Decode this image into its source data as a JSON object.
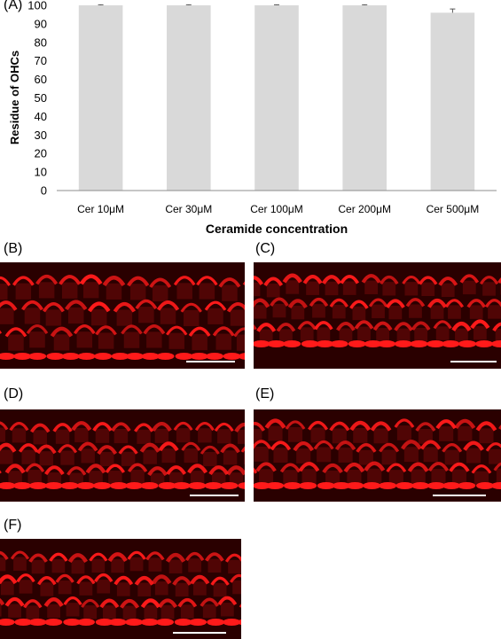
{
  "chart_data": {
    "type": "bar",
    "panel_label": "(A)",
    "categories": [
      "Cer 10μM",
      "Cer 30μM",
      "Cer 100μM",
      "Cer 200μM",
      "Cer 500μM"
    ],
    "values": [
      100,
      100,
      100,
      100,
      96
    ],
    "errors": [
      0.3,
      0.3,
      0.3,
      0.3,
      2
    ],
    "xlabel": "Ceramide concentration",
    "ylabel": "Residue of OHCs",
    "ylim": [
      0,
      100
    ],
    "yticks": [
      0,
      10,
      20,
      30,
      40,
      50,
      60,
      70,
      80,
      90,
      100
    ],
    "bar_color": "#d9d9d9",
    "grid": false
  },
  "micrographs": {
    "labels": [
      "(B)",
      "(C)",
      "(D)",
      "(E)",
      "(F)"
    ],
    "stain_color": "#ff1a1a",
    "scale_bar_color": "#ffffff"
  }
}
